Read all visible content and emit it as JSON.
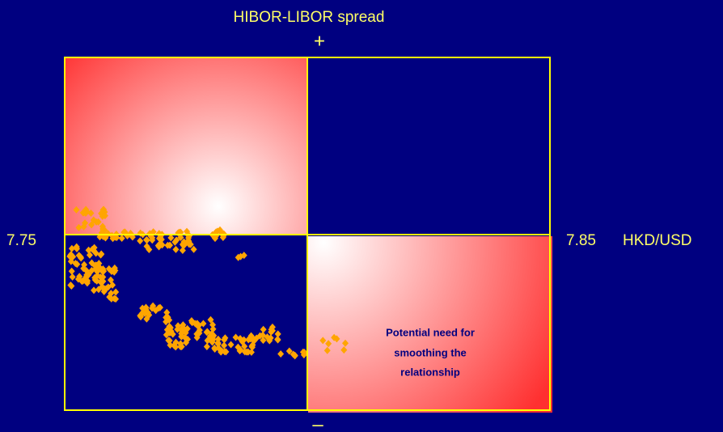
{
  "title": "HIBOR-LIBOR spread",
  "plus_label": "+",
  "minus_label": "–",
  "left_label": "7.75",
  "right_label": "7.85",
  "axis_label": "HKD/USD",
  "note": [
    "Potential need for",
    "smoothing the",
    "relationship"
  ]
}
